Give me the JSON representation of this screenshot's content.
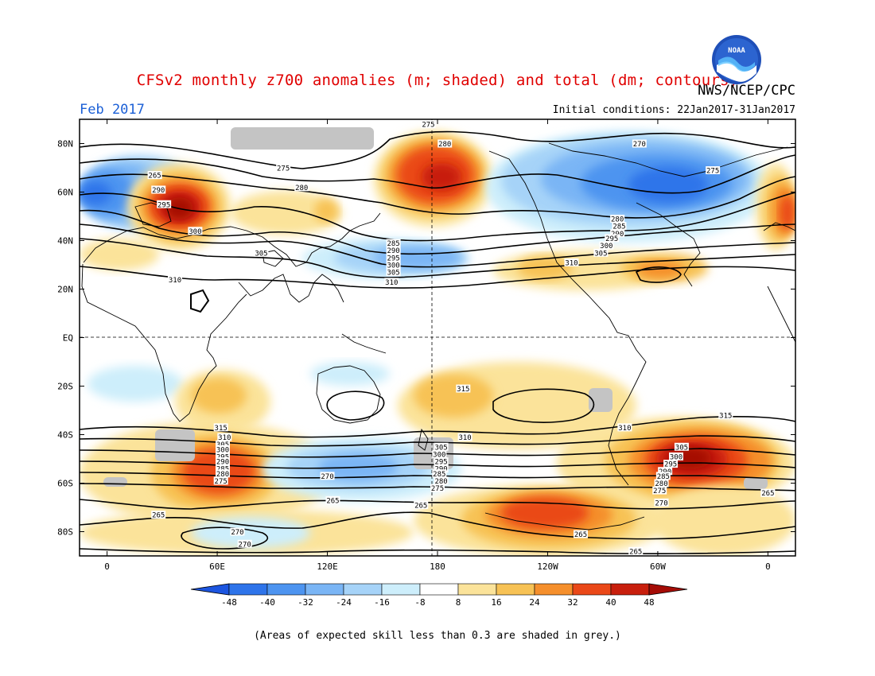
{
  "header": {
    "title": "CFSv2 monthly z700 anomalies (m; shaded) and total (dm; contours)",
    "org": "NWS/NCEP/CPC",
    "month": "Feb 2017",
    "initial_conditions": "Initial conditions: 22Jan2017-31Jan2017",
    "logo_text": "NOAA"
  },
  "axes": {
    "lat_labels": [
      "80N",
      "60N",
      "40N",
      "20N",
      "EQ",
      "20S",
      "40S",
      "60S",
      "80S"
    ],
    "lat_values": [
      80,
      60,
      40,
      20,
      0,
      -20,
      -40,
      -60,
      -80
    ],
    "lon_labels": [
      "0",
      "60E",
      "120E",
      "180",
      "120W",
      "60W",
      "0"
    ],
    "lon_values": [
      0,
      60,
      120,
      180,
      240,
      300,
      360
    ],
    "lon_range": [
      -15,
      375
    ],
    "lat_range": [
      -90,
      90
    ]
  },
  "colorbar": {
    "ticks": [
      "-48",
      "-40",
      "-32",
      "-24",
      "-16",
      "-8",
      "8",
      "16",
      "24",
      "32",
      "40",
      "48"
    ],
    "colors": [
      "#1c55e0",
      "#2e74ea",
      "#4d94f0",
      "#7ab5f5",
      "#a6d3f8",
      "#cdeefb",
      "#ffffff",
      "#fbe39a",
      "#f7c255",
      "#f58f2c",
      "#ea4818",
      "#c81f0d",
      "#a50c06"
    ]
  },
  "footnote": "(Areas of expected skill less than 0.3 are shaded in grey.)",
  "anomaly_colors": {
    "neg48": "#1c55e0",
    "neg40": "#2e74ea",
    "neg32": "#4d94f0",
    "neg24": "#7ab5f5",
    "neg16": "#a6d3f8",
    "neg8": "#cdeefb",
    "pos8": "#fbe39a",
    "pos16": "#f7c255",
    "pos24": "#f58f2c",
    "pos32": "#ea4818",
    "pos40": "#c81f0d",
    "pos48": "#a50c06",
    "lowskill": "#c4c4c4"
  },
  "contour_labels": [
    {
      "text": "275",
      "lon": 175,
      "lat": 88
    },
    {
      "text": "280",
      "lon": 184,
      "lat": 80
    },
    {
      "text": "270",
      "lon": 290,
      "lat": 80
    },
    {
      "text": "275",
      "lon": 330,
      "lat": 69
    },
    {
      "text": "265",
      "lon": 26,
      "lat": 67
    },
    {
      "text": "275",
      "lon": 96,
      "lat": 70
    },
    {
      "text": "280",
      "lon": 106,
      "lat": 62
    },
    {
      "text": "290",
      "lon": 28,
      "lat": 61
    },
    {
      "text": "295",
      "lon": 31,
      "lat": 55
    },
    {
      "text": "300",
      "lon": 48,
      "lat": 44
    },
    {
      "text": "305",
      "lon": 84,
      "lat": 35
    },
    {
      "text": "310",
      "lon": 37,
      "lat": 24
    },
    {
      "text": "285",
      "lon": 156,
      "lat": 39
    },
    {
      "text": "290",
      "lon": 156,
      "lat": 36
    },
    {
      "text": "295",
      "lon": 156,
      "lat": 33
    },
    {
      "text": "300",
      "lon": 156,
      "lat": 30
    },
    {
      "text": "305",
      "lon": 156,
      "lat": 27
    },
    {
      "text": "310",
      "lon": 155,
      "lat": 23
    },
    {
      "text": "280",
      "lon": 278,
      "lat": 49
    },
    {
      "text": "285",
      "lon": 279,
      "lat": 46
    },
    {
      "text": "290",
      "lon": 278,
      "lat": 43
    },
    {
      "text": "295",
      "lon": 275,
      "lat": 41
    },
    {
      "text": "300",
      "lon": 272,
      "lat": 38
    },
    {
      "text": "305",
      "lon": 269,
      "lat": 35
    },
    {
      "text": "310",
      "lon": 253,
      "lat": 31
    },
    {
      "text": "315",
      "lon": 194,
      "lat": -21
    },
    {
      "text": "315",
      "lon": 337,
      "lat": -32
    },
    {
      "text": "310",
      "lon": 282,
      "lat": -37
    },
    {
      "text": "310",
      "lon": 195,
      "lat": -41
    },
    {
      "text": "305",
      "lon": 182,
      "lat": -45
    },
    {
      "text": "300",
      "lon": 181,
      "lat": -48
    },
    {
      "text": "295",
      "lon": 182,
      "lat": -51
    },
    {
      "text": "290",
      "lon": 182,
      "lat": -54
    },
    {
      "text": "285",
      "lon": 181,
      "lat": -56
    },
    {
      "text": "280",
      "lon": 182,
      "lat": -59
    },
    {
      "text": "275",
      "lon": 180,
      "lat": -62
    },
    {
      "text": "270",
      "lon": 120,
      "lat": -57
    },
    {
      "text": "265",
      "lon": 123,
      "lat": -67
    },
    {
      "text": "265",
      "lon": 171,
      "lat": -69
    },
    {
      "text": "265",
      "lon": 28,
      "lat": -73
    },
    {
      "text": "270",
      "lon": 71,
      "lat": -80
    },
    {
      "text": "270",
      "lon": 75,
      "lat": -85
    },
    {
      "text": "265",
      "lon": 258,
      "lat": -81
    },
    {
      "text": "265",
      "lon": 288,
      "lat": -88
    },
    {
      "text": "265",
      "lon": 360,
      "lat": -64
    },
    {
      "text": "315",
      "lon": 62,
      "lat": -37
    },
    {
      "text": "310",
      "lon": 64,
      "lat": -41
    },
    {
      "text": "305",
      "lon": 63,
      "lat": -44
    },
    {
      "text": "300",
      "lon": 63,
      "lat": -46
    },
    {
      "text": "295",
      "lon": 63,
      "lat": -49
    },
    {
      "text": "290",
      "lon": 63,
      "lat": -51
    },
    {
      "text": "285",
      "lon": 63,
      "lat": -54
    },
    {
      "text": "280",
      "lon": 63,
      "lat": -56
    },
    {
      "text": "275",
      "lon": 62,
      "lat": -59
    },
    {
      "text": "305",
      "lon": 313,
      "lat": -45
    },
    {
      "text": "300",
      "lon": 310,
      "lat": -49
    },
    {
      "text": "295",
      "lon": 307,
      "lat": -52
    },
    {
      "text": "290",
      "lon": 304,
      "lat": -55
    },
    {
      "text": "285",
      "lon": 303,
      "lat": -57
    },
    {
      "text": "280",
      "lon": 302,
      "lat": -60
    },
    {
      "text": "275",
      "lon": 301,
      "lat": -63
    },
    {
      "text": "270",
      "lon": 302,
      "lat": -68
    }
  ]
}
